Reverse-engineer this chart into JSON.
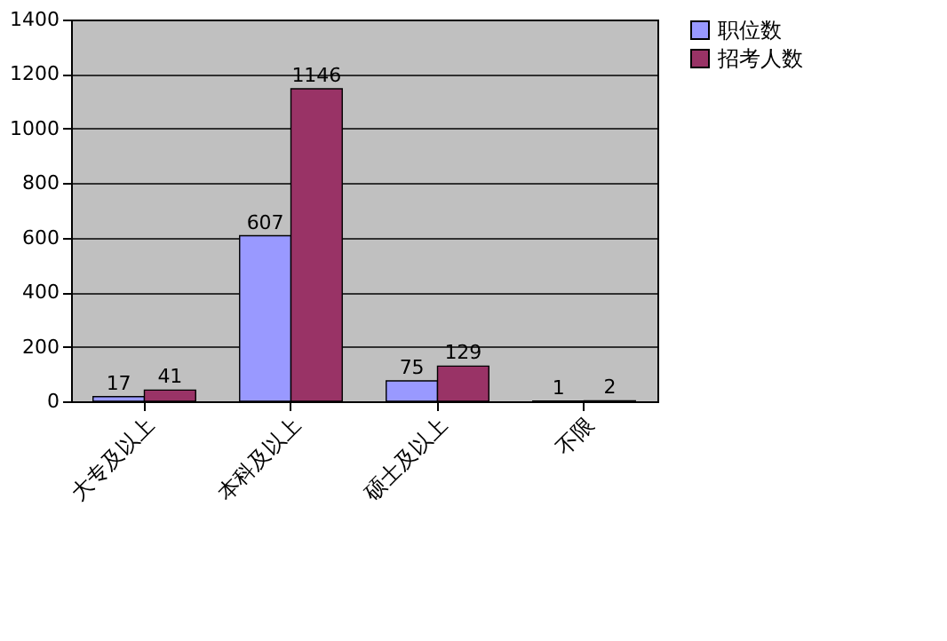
{
  "chart_data": {
    "type": "bar",
    "categories": [
      "大专及以上",
      "本科及以上",
      "硕士及以上",
      "不限"
    ],
    "series": [
      {
        "name": "职位数",
        "color": "#9999ff",
        "values": [
          17,
          607,
          75,
          1
        ]
      },
      {
        "name": "招考人数",
        "color": "#993366",
        "values": [
          41,
          1146,
          129,
          2
        ]
      }
    ],
    "ylim": [
      0,
      1400
    ],
    "yticks": [
      0,
      200,
      400,
      600,
      800,
      1000,
      1200,
      1400
    ],
    "grid": "y",
    "legend": "right",
    "data_labels": true
  }
}
